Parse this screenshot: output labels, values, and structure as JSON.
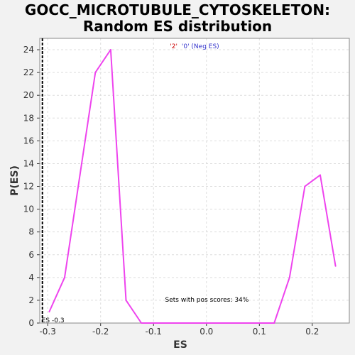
{
  "title_line1": "GOCC_MICROTUBULE_CYTOSKELETON:",
  "title_line2": "Random ES distribution",
  "legend": {
    "part_red": "'2'",
    "part_blue": "'0' (Neg ES)",
    "color_red": "#cc0000",
    "color_blue": "#3333cc"
  },
  "annotation_pos_scores": "Sets with pos scores: 34%",
  "es_marker_label": "ES -0.3",
  "colors": {
    "line": "#ee44ee",
    "plot_bg": "#ffffff",
    "grid": "#dddddd",
    "marker": "#000000"
  },
  "chart_data": {
    "type": "line",
    "xlabel": "ES",
    "ylabel": "P(ES)",
    "xlim": [
      -0.315,
      0.27
    ],
    "ylim": [
      0,
      25
    ],
    "xticks": [
      -0.3,
      -0.2,
      -0.1,
      0.0,
      0.1,
      0.2
    ],
    "xtick_labels": [
      "-0.3",
      "-0.2",
      "-0.1",
      "0.0",
      "0.1",
      "0.2"
    ],
    "yticks": [
      0,
      2,
      4,
      6,
      8,
      10,
      12,
      14,
      16,
      18,
      20,
      22,
      24
    ],
    "es_marker_x": -0.31,
    "grid": true,
    "series": [
      {
        "x": [
          -0.297,
          -0.268,
          -0.239,
          -0.21,
          -0.181,
          -0.152,
          -0.123,
          -0.094,
          -0.065,
          -0.036,
          -0.007,
          0.022,
          0.051,
          0.08,
          0.109,
          0.128,
          0.157,
          0.186,
          0.215,
          0.244
        ],
        "values": [
          1,
          4,
          13,
          22,
          24,
          2,
          0,
          0,
          0,
          0,
          0,
          0,
          0,
          0,
          0,
          0,
          4,
          12,
          13,
          5
        ]
      }
    ]
  }
}
